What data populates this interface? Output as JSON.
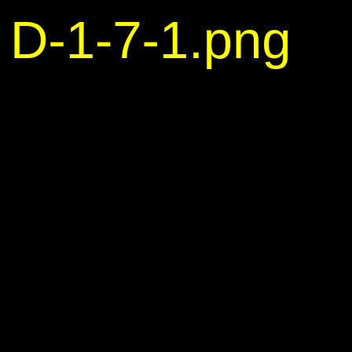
{
  "image": {
    "filename_text": "D-1-7-1.png"
  },
  "colors": {
    "background": "#000000",
    "text": "#ffff00"
  }
}
